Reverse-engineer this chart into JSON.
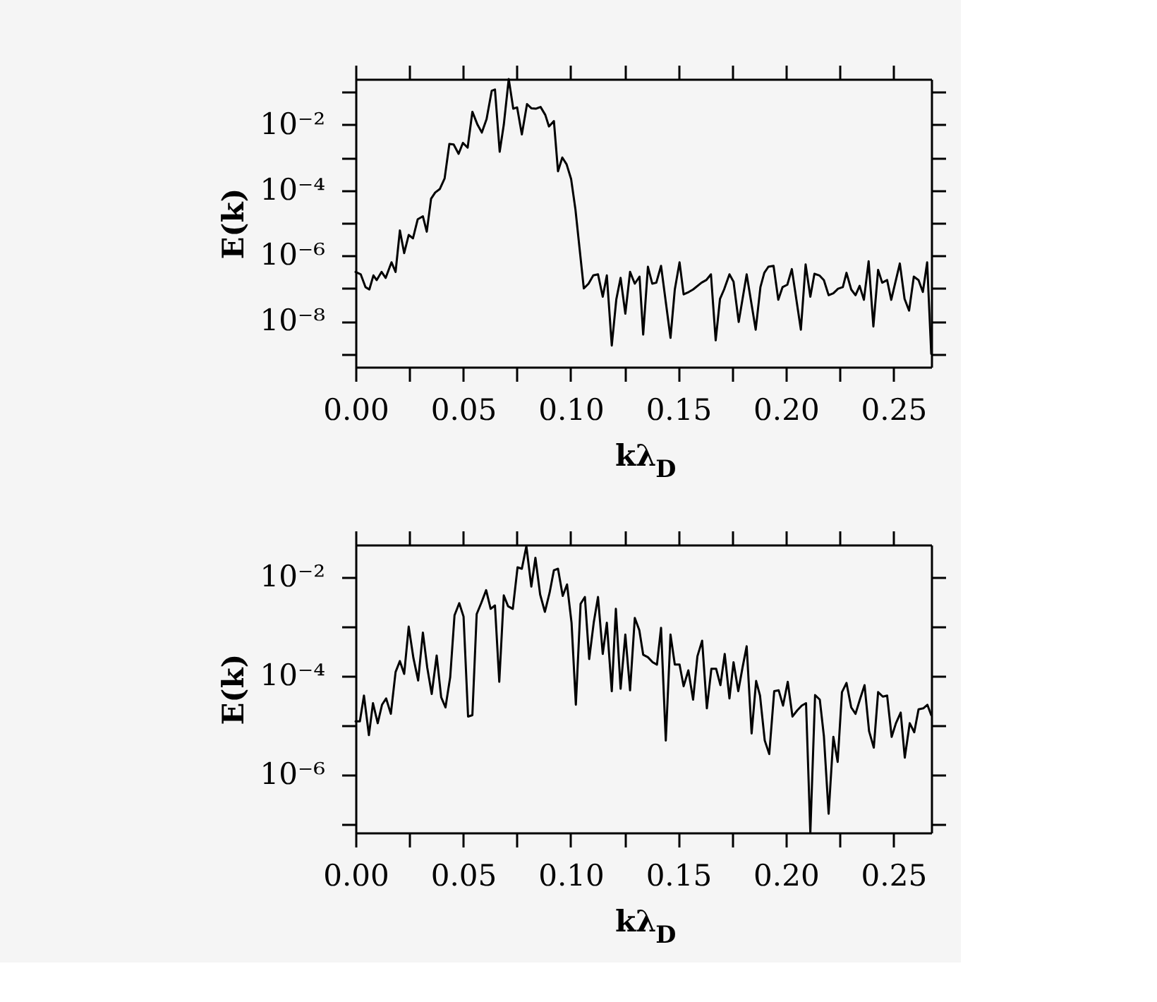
{
  "chart_data": [
    {
      "type": "line",
      "xlabel": "kλ$_{D}$",
      "ylabel": "E(k)",
      "log": true,
      "grid": false,
      "xlim": [
        0,
        0.2676
      ],
      "ylim": [
        4e-10,
        0.25
      ],
      "xticks": [
        {
          "value": 0,
          "label": "0.00"
        },
        {
          "value": 0.025,
          "label": null
        },
        0.05,
        {
          "value": 0.075,
          "label": null
        },
        {
          "value": 0.1,
          "label": "0.10"
        },
        {
          "value": 0.125,
          "label": null
        },
        0.15,
        {
          "value": 0.175,
          "label": null
        },
        {
          "value": 0.2,
          "label": "0.20"
        },
        {
          "value": 0.225,
          "label": null
        },
        0.25
      ],
      "yticks": [
        {
          "value": 1e-09,
          "label": null
        },
        {
          "value": 1e-08,
          "label": "10⁻⁸"
        },
        {
          "value": 1e-07,
          "label": null
        },
        {
          "value": 1e-06,
          "label": "10⁻⁶"
        },
        {
          "value": 1e-05,
          "label": null
        },
        {
          "value": 0.0001,
          "label": "10⁻⁴"
        },
        {
          "value": 0.001,
          "label": null
        },
        {
          "value": 0.01,
          "label": "10⁻²"
        },
        {
          "value": 0.1,
          "label": null
        }
      ],
      "x": [
        0,
        0.0024,
        0.0046,
        0.0064,
        0.0083,
        0.0098,
        0.0121,
        0.014,
        0.0167,
        0.0186,
        0.0206,
        0.0226,
        0.0247,
        0.0267,
        0.0289,
        0.0313,
        0.0331,
        0.0351,
        0.037,
        0.0392,
        0.0414,
        0.0436,
        0.0456,
        0.0479,
        0.0499,
        0.0521,
        0.0543,
        0.0567,
        0.0587,
        0.0609,
        0.0633,
        0.0648,
        0.067,
        0.0689,
        0.0712,
        0.0733,
        0.0751,
        0.0773,
        0.0797,
        0.0817,
        0.0838,
        0.086,
        0.0882,
        0.0899,
        0.0922,
        0.0941,
        0.0961,
        0.0981,
        0.1002,
        0.1022,
        0.1042,
        0.1061,
        0.1083,
        0.1105,
        0.1127,
        0.1149,
        0.1168,
        0.1191,
        0.1212,
        0.1232,
        0.1254,
        0.1276,
        0.1298,
        0.132,
        0.1337,
        0.1359,
        0.1379,
        0.1398,
        0.142,
        0.1464,
        0.1484,
        0.1506,
        0.1525,
        0.1549,
        0.1569,
        0.1608,
        0.163,
        0.1652,
        0.1674,
        0.1694,
        0.1713,
        0.1738,
        0.1757,
        0.1781,
        0.1818,
        0.186,
        0.1882,
        0.19,
        0.1919,
        0.1943,
        0.1965,
        0.1985,
        0.2007,
        0.2028,
        0.207,
        0.2092,
        0.2114,
        0.2133,
        0.2156,
        0.2177,
        0.2199,
        0.2221,
        0.2243,
        0.2265,
        0.2282,
        0.2304,
        0.2324,
        0.2343,
        0.2363,
        0.2385,
        0.2407,
        0.2429,
        0.2448,
        0.2471,
        0.249,
        0.253,
        0.2552,
        0.2573,
        0.2595,
        0.2617,
        0.2637,
        0.2657,
        0.2676
      ],
      "series": [
        {
          "color": "#000000",
          "values": [
            3.2e-07,
            2.7e-07,
            1.1e-07,
            9.3e-08,
            2.5e-07,
            1.8e-07,
            3.2e-07,
            2.1e-07,
            6.3e-07,
            3.2e-07,
            5.9e-06,
            1.2e-06,
            4.3e-06,
            3.4e-06,
            1.3e-05,
            1.6e-05,
            5.4e-06,
            5.5e-05,
            8.5e-05,
            0.00011,
            0.00023,
            0.0026,
            0.0025,
            0.0013,
            0.0028,
            0.002,
            0.025,
            0.01,
            0.0058,
            0.015,
            0.11,
            0.12,
            0.0015,
            0.01,
            0.25,
            0.031,
            0.034,
            0.0051,
            0.043,
            0.032,
            0.031,
            0.035,
            0.02,
            0.0089,
            0.013,
            0.00038,
            0.001,
            0.00062,
            0.00022,
            2.6e-05,
            1.5e-06,
            1e-07,
            1.4e-07,
            2.5e-07,
            2.7e-07,
            5.6e-08,
            2.5e-07,
            1.8e-09,
            4.6e-08,
            2.1e-07,
            1.7e-08,
            3.2e-07,
            1.4e-07,
            2.3e-07,
            3.9e-09,
            4.6e-07,
            1.4e-07,
            1.5e-07,
            4.9e-07,
            3.1e-09,
            9.3e-08,
            6.3e-07,
            6.6e-08,
            7.8e-08,
            9.3e-08,
            1.5e-07,
            1.8e-07,
            2.7e-07,
            2.6e-09,
            4.8e-08,
            9.3e-08,
            2.7e-07,
            1.6e-07,
            9.5e-09,
            2.7e-07,
            5.5e-09,
            1.1e-07,
            3e-07,
            4.6e-07,
            4.9e-07,
            4.5e-08,
            1.1e-07,
            1.3e-07,
            3.9e-07,
            5.5e-09,
            5.4e-07,
            5.6e-08,
            2.8e-07,
            2.5e-07,
            1.8e-07,
            6.2e-08,
            7.1e-08,
            9.8e-08,
            1.1e-07,
            3e-07,
            9.3e-08,
            6.2e-08,
            1.2e-07,
            4.5e-08,
            6.8e-07,
            6.9e-09,
            3.7e-07,
            1.5e-07,
            1.8e-07,
            4.5e-08,
            5.8e-07,
            4.8e-08,
            2.1e-08,
            2.3e-07,
            1.8e-07,
            7.8e-08,
            6.3e-07,
            1e-09
          ]
        }
      ]
    },
    {
      "type": "line",
      "xlabel": "kλ$_{D}$",
      "ylabel": "E(k)",
      "log": true,
      "grid": false,
      "xlim": [
        0,
        0.2676
      ],
      "ylim": [
        6.6e-08,
        0.046
      ],
      "xticks": [
        {
          "value": 0,
          "label": "0.00"
        },
        {
          "value": 0.025,
          "label": null
        },
        0.05,
        {
          "value": 0.075,
          "label": null
        },
        {
          "value": 0.1,
          "label": "0.10"
        },
        {
          "value": 0.125,
          "label": null
        },
        0.15,
        {
          "value": 0.175,
          "label": null
        },
        {
          "value": 0.2,
          "label": "0.20"
        },
        {
          "value": 0.225,
          "label": null
        },
        0.25
      ],
      "yticks": [
        {
          "value": 1e-07,
          "label": null
        },
        {
          "value": 1e-06,
          "label": "10⁻⁶"
        },
        {
          "value": 1e-05,
          "label": null
        },
        {
          "value": 0.0001,
          "label": "10⁻⁴"
        },
        {
          "value": 0.001,
          "label": null
        },
        {
          "value": 0.01,
          "label": "10⁻²"
        }
      ],
      "x": [
        0,
        0.002,
        0.0039,
        0.0062,
        0.0081,
        0.0103,
        0.0123,
        0.0142,
        0.0164,
        0.0186,
        0.0206,
        0.0226,
        0.0247,
        0.0269,
        0.0291,
        0.0313,
        0.0333,
        0.0354,
        0.0377,
        0.0398,
        0.0418,
        0.044,
        0.046,
        0.0482,
        0.0502,
        0.0523,
        0.0543,
        0.0563,
        0.0584,
        0.0607,
        0.0628,
        0.0648,
        0.0668,
        0.0689,
        0.0709,
        0.0731,
        0.0753,
        0.0773,
        0.0794,
        0.0817,
        0.0836,
        0.0858,
        0.088,
        0.0902,
        0.0922,
        0.0941,
        0.0963,
        0.0983,
        0.1004,
        0.1024,
        0.1046,
        0.1066,
        0.1086,
        0.1107,
        0.1127,
        0.1149,
        0.1168,
        0.1191,
        0.121,
        0.1232,
        0.1254,
        0.1276,
        0.1298,
        0.1319,
        0.1337,
        0.1359,
        0.1381,
        0.1401,
        0.142,
        0.1442,
        0.1464,
        0.1484,
        0.1506,
        0.1525,
        0.1547,
        0.1569,
        0.1589,
        0.1611,
        0.1633,
        0.1654,
        0.1676,
        0.1696,
        0.1716,
        0.1738,
        0.1757,
        0.1779,
        0.1799,
        0.1818,
        0.1841,
        0.1862,
        0.188,
        0.1902,
        0.1923,
        0.1946,
        0.1967,
        0.1987,
        0.2009,
        0.2031,
        0.2053,
        0.2074,
        0.2094,
        0.2114,
        0.2136,
        0.2158,
        0.2177,
        0.2199,
        0.2221,
        0.2241,
        0.2261,
        0.2282,
        0.2304,
        0.2324,
        0.2346,
        0.2366,
        0.2387,
        0.2409,
        0.2429,
        0.2451,
        0.2471,
        0.2492,
        0.2512,
        0.2534,
        0.2553,
        0.2576,
        0.2597,
        0.2617,
        0.2639,
        0.2658,
        0.2676
      ],
      "series": [
        {
          "color": "#000000",
          "values": [
            1.2e-05,
            1.2e-05,
            4e-05,
            6.3e-06,
            2.8e-05,
            1.1e-05,
            2.6e-05,
            3.5e-05,
            1.7e-05,
            0.00012,
            0.0002,
            0.00011,
            0.001,
            0.00023,
            8.1e-05,
            0.00076,
            0.00015,
            4.3e-05,
            0.00026,
            3.7e-05,
            2.3e-05,
            9.5e-05,
            0.0017,
            0.003,
            0.0016,
            1.5e-05,
            1.6e-05,
            0.0018,
            0.003,
            0.0055,
            0.0023,
            0.0027,
            7.6e-05,
            0.0043,
            0.0026,
            0.0023,
            0.016,
            0.015,
            0.043,
            0.0065,
            0.025,
            0.0045,
            0.002,
            0.0049,
            0.014,
            0.015,
            0.0042,
            0.0072,
            0.0012,
            2.6e-05,
            0.0029,
            0.004,
            0.00022,
            0.0012,
            0.004,
            0.00028,
            0.0012,
            4.9e-05,
            0.0023,
            5.5e-05,
            0.00069,
            5.1e-05,
            0.0015,
            0.00085,
            0.00027,
            0.00024,
            0.00019,
            0.00017,
            0.00095,
            4.9e-06,
            0.00069,
            0.00017,
            0.00017,
            6.2e-05,
            0.00013,
            3.3e-05,
            0.00025,
            0.00052,
            2.2e-05,
            0.00014,
            0.00014,
            6.5e-05,
            0.00028,
            3.5e-05,
            0.00019,
            4.9e-05,
            0.00015,
            0.0004,
            6.8e-06,
            7.9e-05,
            4e-05,
            4.9e-06,
            2.6e-06,
            4.9e-05,
            5.1e-05,
            2.5e-05,
            7.6e-05,
            1.5e-05,
            2e-05,
            2.5e-05,
            2.8e-05,
            6.6e-08,
            4.1e-05,
            3.3e-05,
            6e-06,
            1.6e-07,
            5.8e-06,
            1.8e-06,
            4.7e-05,
            7.2e-05,
            2.3e-05,
            1.7e-05,
            3.5e-05,
            6.5e-05,
            7.6e-06,
            3.5e-06,
            4.7e-05,
            3.8e-05,
            4e-05,
            5.8e-06,
            1.1e-05,
            1.8e-05,
            2.2e-06,
            1.1e-05,
            7.2e-06,
            2.1e-05,
            2.2e-05,
            2.6e-05,
            1.6e-05
          ]
        }
      ]
    }
  ]
}
